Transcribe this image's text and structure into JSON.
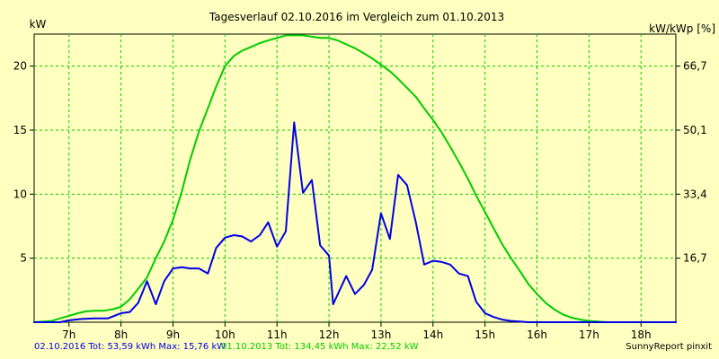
{
  "chart_data": {
    "type": "line",
    "title": "Tagesverlauf 02.10.2016 im Vergleich zum 01.10.2013",
    "ylabel_left": "kW",
    "ylabel_right": "kW/kWp [%]",
    "xlim": [
      6.33,
      18.67
    ],
    "ylim": [
      0,
      22.5
    ],
    "x_ticks": [
      7,
      8,
      9,
      10,
      11,
      12,
      13,
      14,
      15,
      16,
      17,
      18
    ],
    "x_tick_labels": [
      "7h",
      "8h",
      "9h",
      "10h",
      "11h",
      "12h",
      "13h",
      "14h",
      "15h",
      "16h",
      "17h",
      "18h"
    ],
    "y_ticks_left": [
      5,
      10,
      15,
      20
    ],
    "y_tick_labels_left": [
      "5",
      "10",
      "15",
      "20"
    ],
    "y_ticks_right": [
      5.0,
      10.0,
      15.0,
      20.0
    ],
    "y_tick_labels_right": [
      "16,7",
      "33,4",
      "50,1",
      "66,7"
    ],
    "grid": true,
    "series": [
      {
        "name": "02.10.2016",
        "color": "#0000e6",
        "x": [
          6.33,
          6.83,
          7.0,
          7.25,
          7.5,
          7.75,
          8.0,
          8.17,
          8.33,
          8.5,
          8.67,
          8.83,
          9.0,
          9.17,
          9.33,
          9.5,
          9.67,
          9.83,
          10.0,
          10.17,
          10.33,
          10.5,
          10.67,
          10.83,
          11.0,
          11.17,
          11.33,
          11.5,
          11.67,
          11.83,
          12.0,
          12.08,
          12.33,
          12.5,
          12.67,
          12.83,
          13.0,
          13.17,
          13.33,
          13.5,
          13.67,
          13.83,
          14.0,
          14.17,
          14.33,
          14.5,
          14.67,
          14.83,
          15.0,
          15.17,
          15.33,
          15.5,
          15.67,
          15.83,
          16.0,
          16.17,
          16.33,
          16.5,
          16.67,
          16.83,
          17.0,
          17.17,
          17.33,
          17.5,
          17.67,
          17.83,
          18.0,
          18.33,
          18.67
        ],
        "values": [
          0,
          0,
          0.15,
          0.25,
          0.3,
          0.3,
          0.7,
          0.8,
          1.5,
          3.2,
          1.4,
          3.2,
          4.2,
          4.3,
          4.2,
          4.2,
          3.8,
          5.8,
          6.6,
          6.8,
          6.7,
          6.3,
          6.8,
          7.8,
          5.9,
          7.1,
          15.6,
          10.1,
          11.1,
          6.0,
          5.2,
          1.4,
          3.6,
          2.2,
          2.9,
          4.1,
          8.5,
          6.5,
          11.5,
          10.7,
          7.8,
          4.5,
          4.8,
          4.7,
          4.5,
          3.8,
          3.6,
          1.6,
          0.7,
          0.4,
          0.2,
          0.1,
          0.05,
          0,
          0,
          0,
          0,
          0,
          0,
          0,
          0,
          0,
          0,
          0,
          0,
          0,
          0,
          0,
          0
        ],
        "total_label": "02.10.2016 Tot: 53,59 kWh Max: 15,76 kW"
      },
      {
        "name": "01.10.2013",
        "color": "#00cc00",
        "x": [
          6.33,
          6.67,
          6.83,
          7.0,
          7.17,
          7.33,
          7.5,
          7.67,
          7.83,
          8.0,
          8.17,
          8.33,
          8.5,
          8.67,
          8.83,
          9.0,
          9.17,
          9.33,
          9.5,
          9.67,
          9.83,
          10.0,
          10.17,
          10.33,
          10.5,
          10.67,
          10.83,
          11.0,
          11.17,
          11.33,
          11.5,
          11.67,
          11.83,
          12.0,
          12.17,
          12.33,
          12.5,
          12.67,
          12.83,
          13.0,
          13.17,
          13.33,
          13.5,
          13.67,
          13.83,
          14.0,
          14.17,
          14.33,
          14.5,
          14.67,
          14.83,
          15.0,
          15.17,
          15.33,
          15.5,
          15.67,
          15.83,
          16.0,
          16.17,
          16.33,
          16.5,
          16.67,
          16.83,
          17.0,
          17.17,
          17.33,
          17.5,
          17.67,
          17.83,
          18.0,
          18.17,
          18.33,
          18.67
        ],
        "values": [
          0,
          0.1,
          0.3,
          0.5,
          0.7,
          0.85,
          0.9,
          0.9,
          1.0,
          1.2,
          1.8,
          2.6,
          3.5,
          5.0,
          6.3,
          8.0,
          10.2,
          12.7,
          14.9,
          16.7,
          18.4,
          20.0,
          20.8,
          21.2,
          21.5,
          21.8,
          22.0,
          22.2,
          22.4,
          22.4,
          22.4,
          22.3,
          22.2,
          22.2,
          22.0,
          21.7,
          21.4,
          21.0,
          20.6,
          20.1,
          19.6,
          19.0,
          18.3,
          17.6,
          16.7,
          15.8,
          14.8,
          13.7,
          12.5,
          11.2,
          9.9,
          8.6,
          7.3,
          6.1,
          5.0,
          4.0,
          3.0,
          2.2,
          1.5,
          1.0,
          0.6,
          0.35,
          0.2,
          0.1,
          0.05,
          0,
          0,
          0,
          0,
          0,
          0,
          0,
          0
        ],
        "total_label": "01.10.2013 Tot: 134,45 kWh Max: 22,52 kW"
      }
    ],
    "credit": "SunnyReport pinxit"
  }
}
